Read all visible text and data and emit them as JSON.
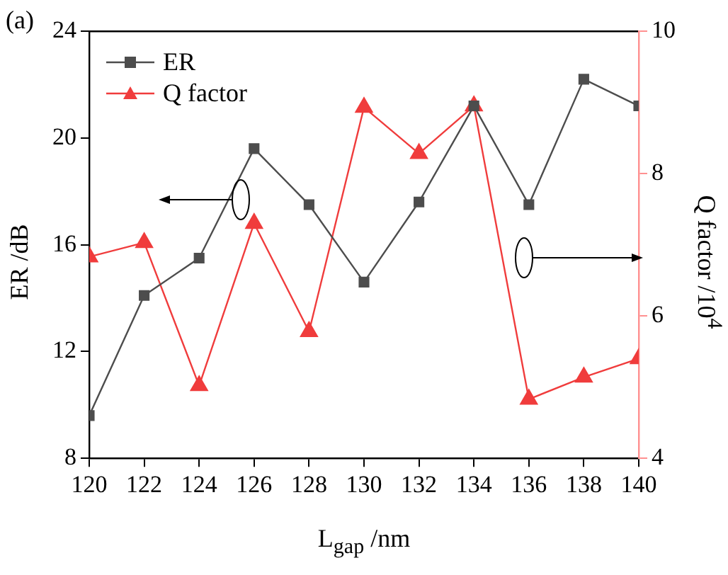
{
  "chart_data": {
    "type": "line",
    "annotations": [
      "(a)"
    ],
    "xlabel": "L$_{gap}$ /nm",
    "ylabel": "ER /dB",
    "y2label": "Q factor /10$^{4}$",
    "x": [
      120,
      122,
      124,
      126,
      128,
      130,
      132,
      134,
      136,
      138,
      140
    ],
    "xlim": [
      120,
      140
    ],
    "xticks": [
      120,
      122,
      124,
      126,
      128,
      130,
      132,
      134,
      136,
      138,
      140
    ],
    "ylim": [
      8,
      24
    ],
    "yticks": [
      8,
      12,
      16,
      20,
      24
    ],
    "y2lim": [
      4,
      10
    ],
    "y2ticks": [
      4,
      6,
      8,
      10
    ],
    "series": [
      {
        "name": "ER",
        "color": "#4d4d4d",
        "marker": "square",
        "values": [
          9.6,
          14.1,
          15.5,
          19.6,
          17.5,
          14.6,
          17.6,
          21.2,
          17.5,
          22.2,
          21.2
        ]
      },
      {
        "name": "Q factor",
        "color": "#f03c3c",
        "marker": "triangle",
        "axis": "y2",
        "values": [
          6.83,
          7.03,
          5.02,
          7.3,
          5.78,
          8.93,
          8.28,
          8.95,
          4.83,
          5.14,
          5.4
        ]
      }
    ],
    "legend": "top left",
    "grid": false
  }
}
